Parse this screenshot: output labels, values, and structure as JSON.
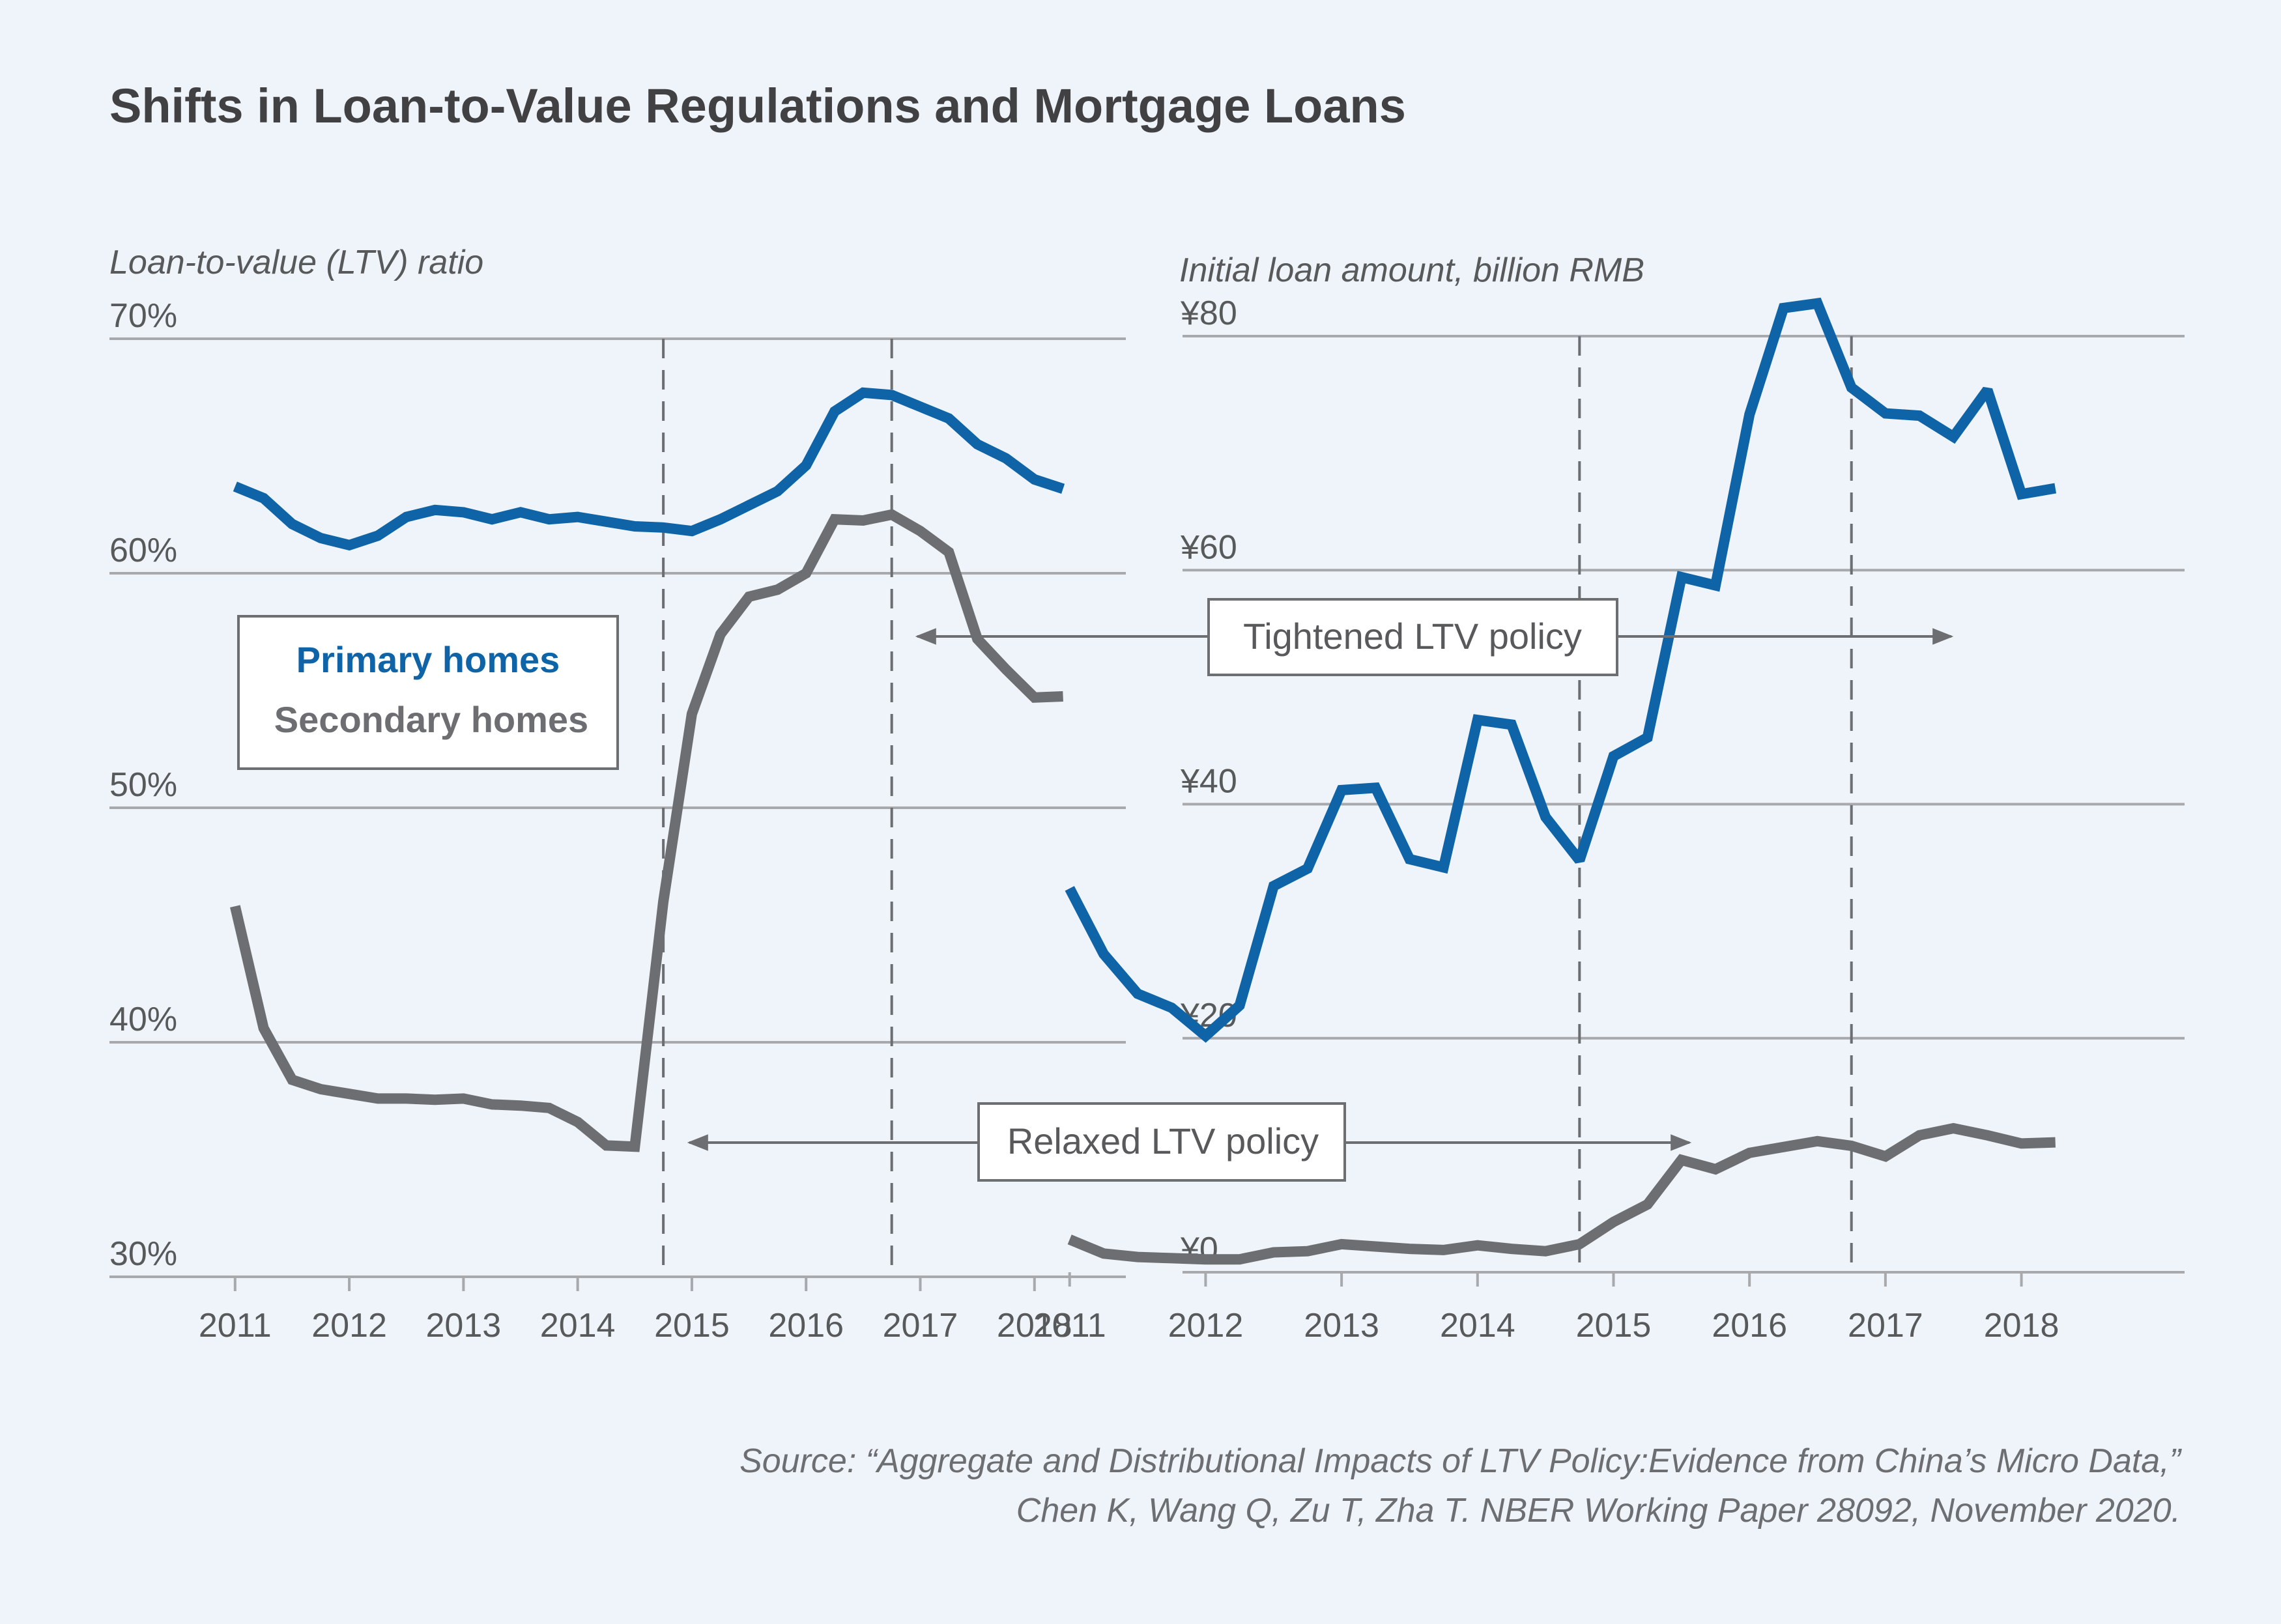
{
  "title": "Shifts in Loan-to-Value Regulations and Mortgage Loans",
  "source": {
    "line1": "Source: “Aggregate and Distributional Impacts of LTV Policy:Evidence from China’s Micro Data,”",
    "line2": "Chen K, Wang Q, Zu T, Zha T. NBER Working Paper 28092, November 2020."
  },
  "legend": {
    "primary": "Primary homes",
    "secondary": "Secondary homes"
  },
  "colors": {
    "primary": "#0f64a8",
    "secondary": "#6d6e71",
    "grid": "#a7a9ac",
    "background": "#eef4f9"
  },
  "annotations": {
    "tightened": "Tightened LTV policy",
    "relaxed": "Relaxed LTV policy"
  },
  "chart_data": [
    {
      "type": "line",
      "ylabel": "Loan-to-value (LTV) ratio",
      "ylim": [
        30,
        70
      ],
      "yticks": [
        30,
        40,
        50,
        60,
        70
      ],
      "ytick_labels": [
        "30%",
        "40%",
        "50%",
        "60%",
        "70%"
      ],
      "xlim": [
        2009.9,
        2018.8
      ],
      "xticks": [
        2011,
        2012,
        2013,
        2014,
        2015,
        2016,
        2017,
        2018
      ],
      "xtick_labels": [
        "2011",
        "2012",
        "2013",
        "2014",
        "2015",
        "2016",
        "2017",
        "2018"
      ],
      "vlines": [
        2014.75,
        2016.75
      ],
      "grid": true,
      "series": [
        {
          "name": "Primary homes",
          "x": [
            2011.0,
            2011.25,
            2011.5,
            2011.75,
            2012.0,
            2012.25,
            2012.5,
            2012.75,
            2013.0,
            2013.25,
            2013.5,
            2013.75,
            2014.0,
            2014.25,
            2014.5,
            2014.75,
            2015.0,
            2015.25,
            2015.5,
            2015.75,
            2016.0,
            2016.25,
            2016.5,
            2016.75,
            2017.0,
            2017.25,
            2017.5,
            2017.75,
            2018.0,
            2018.25
          ],
          "values": [
            63.7,
            63.2,
            62.1,
            61.5,
            61.2,
            61.6,
            62.4,
            62.7,
            62.6,
            62.3,
            62.6,
            62.3,
            62.4,
            62.2,
            62.0,
            61.95,
            61.8,
            62.3,
            62.9,
            63.5,
            64.6,
            66.9,
            67.7,
            67.6,
            67.1,
            66.6,
            65.5,
            64.9,
            64.0,
            63.6
          ]
        },
        {
          "name": "Secondary homes",
          "x": [
            2011.0,
            2011.25,
            2011.5,
            2011.75,
            2012.0,
            2012.25,
            2012.5,
            2012.75,
            2013.0,
            2013.25,
            2013.5,
            2013.75,
            2014.0,
            2014.25,
            2014.5,
            2014.75,
            2015.0,
            2015.25,
            2015.5,
            2015.75,
            2016.0,
            2016.25,
            2016.5,
            2016.75,
            2017.0,
            2017.25,
            2017.5,
            2017.75,
            2018.0,
            2018.25
          ],
          "values": [
            45.8,
            40.6,
            38.4,
            38.0,
            37.8,
            37.6,
            37.6,
            37.55,
            37.6,
            37.35,
            37.3,
            37.2,
            36.6,
            35.6,
            35.55,
            46.0,
            54.0,
            57.4,
            59.0,
            59.3,
            60.0,
            62.3,
            62.25,
            62.5,
            61.8,
            60.9,
            57.2,
            55.9,
            54.7,
            54.75
          ]
        }
      ]
    },
    {
      "type": "line",
      "ylabel": "Initial loan amount, billion RMB",
      "ylim": [
        0,
        80
      ],
      "yticks": [
        0,
        20,
        40,
        60,
        80
      ],
      "ytick_labels": [
        "¥0",
        "¥20",
        "¥40",
        "¥60",
        "¥80"
      ],
      "xlim": [
        2010.8,
        2019.2
      ],
      "xticks": [
        2011,
        2012,
        2013,
        2014,
        2015,
        2016,
        2017,
        2018
      ],
      "xtick_labels": [
        "2011",
        "2012",
        "2013",
        "2014",
        "2015",
        "2016",
        "2017",
        "2018"
      ],
      "vlines": [
        2014.75,
        2016.75
      ],
      "grid": true,
      "series": [
        {
          "name": "Primary homes",
          "x": [
            2011.0,
            2011.25,
            2011.5,
            2011.75,
            2012.0,
            2012.25,
            2012.5,
            2012.75,
            2013.0,
            2013.25,
            2013.5,
            2013.75,
            2014.0,
            2014.25,
            2014.5,
            2014.75,
            2015.0,
            2015.25,
            2015.5,
            2015.75,
            2016.0,
            2016.25,
            2016.5,
            2016.75,
            2017.0,
            2017.25,
            2017.5,
            2017.75,
            2018.0,
            2018.25
          ],
          "values": [
            32.8,
            27.2,
            23.8,
            22.6,
            20.2,
            22.8,
            33.0,
            34.5,
            41.2,
            41.4,
            35.3,
            34.6,
            47.2,
            46.8,
            38.9,
            35.2,
            44.1,
            45.7,
            59.4,
            58.7,
            73.3,
            82.4,
            82.8,
            75.6,
            73.4,
            73.2,
            71.4,
            75.4,
            66.5,
            67.0
          ]
        },
        {
          "name": "Secondary homes",
          "x": [
            2011.0,
            2011.25,
            2011.5,
            2011.75,
            2012.0,
            2012.25,
            2012.5,
            2012.75,
            2013.0,
            2013.25,
            2013.5,
            2013.75,
            2014.0,
            2014.25,
            2014.5,
            2014.75,
            2015.0,
            2015.25,
            2015.5,
            2015.75,
            2016.0,
            2016.25,
            2016.5,
            2016.75,
            2017.0,
            2017.25,
            2017.5,
            2017.75,
            2018.0,
            2018.25
          ],
          "values": [
            2.8,
            1.6,
            1.3,
            1.2,
            1.1,
            1.1,
            1.7,
            1.8,
            2.4,
            2.2,
            2.0,
            1.9,
            2.3,
            2.0,
            1.8,
            2.4,
            4.3,
            5.8,
            9.6,
            8.8,
            10.2,
            10.7,
            11.2,
            10.8,
            9.9,
            11.7,
            12.3,
            11.7,
            11.0,
            11.1
          ]
        }
      ]
    }
  ]
}
